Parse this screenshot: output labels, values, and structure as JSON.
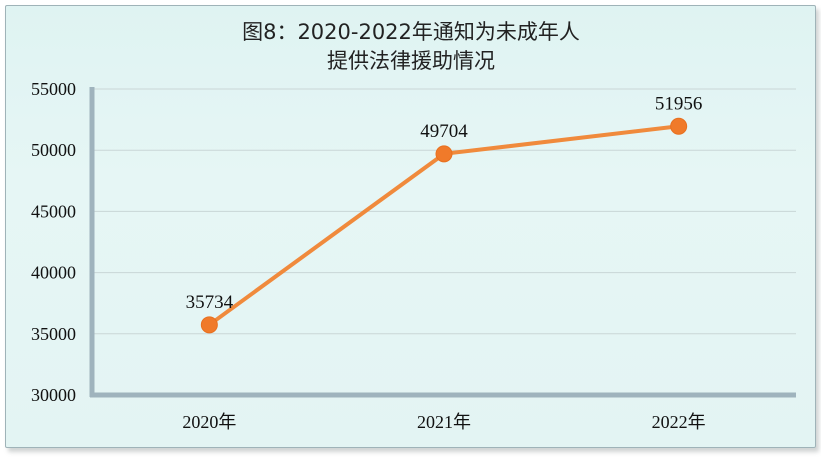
{
  "chart_data": {
    "type": "line",
    "title_lines": [
      "图8：2020-2022年通知为未成年人",
      "提供法律援助情况"
    ],
    "categories": [
      "2020年",
      "2021年",
      "2022年"
    ],
    "values": [
      35734,
      49704,
      51956
    ],
    "data_labels": [
      "35734",
      "49704",
      "51956"
    ],
    "y_ticks": [
      "30000",
      "35000",
      "40000",
      "45000",
      "50000",
      "55000"
    ],
    "ylim": [
      30000,
      55000
    ],
    "grid": true,
    "xlabel": "",
    "ylabel": "",
    "colors": {
      "line": "#f08a3c",
      "marker": "#f07a2a",
      "axis": "#9fb3bd",
      "grid": "#c9d6d6"
    }
  }
}
